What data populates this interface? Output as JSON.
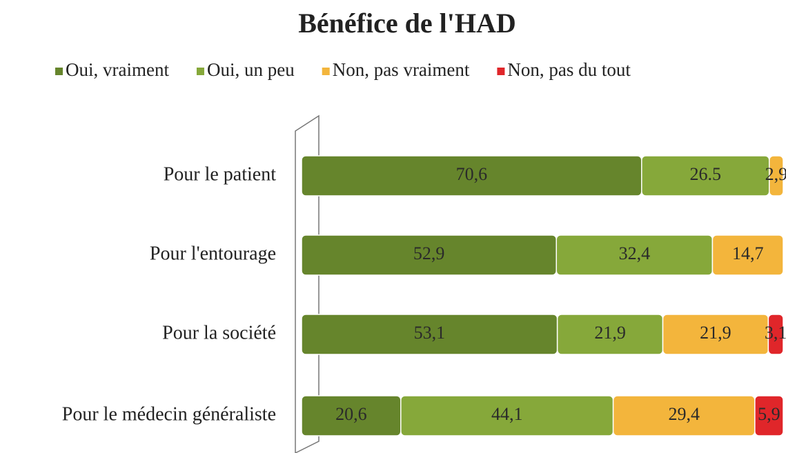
{
  "chart_data": {
    "type": "stacked-bar-horizontal",
    "title": "Bénéfice de l'HAD",
    "categories": [
      "Pour le patient",
      "Pour l'entourage",
      "Pour la société",
      "Pour le médecin généraliste"
    ],
    "xlim": [
      0,
      100
    ],
    "series": [
      {
        "name": "Oui, vraiment",
        "color": "#66852c",
        "values": [
          70.6,
          52.9,
          53.1,
          20.6
        ],
        "value_labels": [
          "70,6",
          "52,9",
          "53,1",
          "20,6"
        ]
      },
      {
        "name": "Oui, un peu",
        "color": "#86a83a",
        "values": [
          26.5,
          32.4,
          21.9,
          44.1
        ],
        "value_labels": [
          "26.5",
          "32,4",
          "21,9",
          "44,1"
        ]
      },
      {
        "name": "Non, pas vraiment",
        "color": "#f3b53c",
        "values": [
          2.9,
          14.7,
          21.9,
          29.4
        ],
        "value_labels": [
          "2,9",
          "14,7",
          "21,9",
          "29,4"
        ]
      },
      {
        "name": "Non, pas du tout",
        "color": "#e0262a",
        "values": [
          0,
          0,
          3.1,
          5.9
        ],
        "value_labels": [
          null,
          null,
          "3,1",
          "5,9"
        ]
      }
    ]
  }
}
